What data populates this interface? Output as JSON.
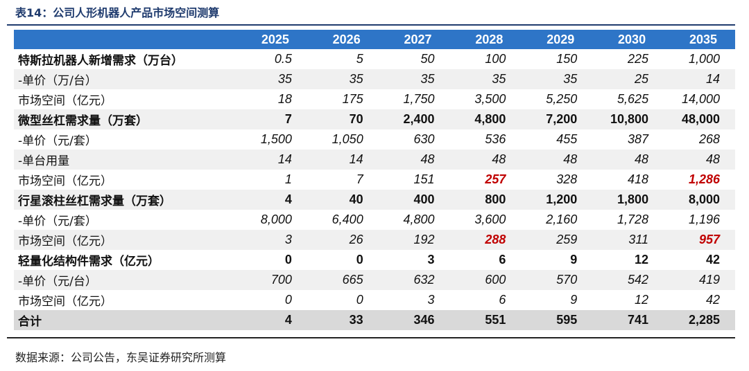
{
  "title": "表14：公司人形机器人产品市场空间测算",
  "source": "数据来源：公司公告，东吴证券研究所测算",
  "columns": [
    "2025",
    "2026",
    "2027",
    "2028",
    "2029",
    "2030",
    "2035"
  ],
  "highlight_color": "#c00000",
  "header_color": "#2e75c7",
  "rows": [
    {
      "label": "特斯拉机器人新增需求（万台）",
      "values": [
        "0.5",
        "5",
        "50",
        "100",
        "150",
        "225",
        "1,000"
      ]
    },
    {
      "label": "-单价（万/台）",
      "values": [
        "35",
        "35",
        "35",
        "35",
        "35",
        "25",
        "14"
      ]
    },
    {
      "label": "市场空间（亿元）",
      "values": [
        "18",
        "175",
        "1,750",
        "3,500",
        "5,250",
        "5,625",
        "14,000"
      ]
    },
    {
      "label": "微型丝杠需求量（万套）",
      "values": [
        "7",
        "70",
        "2,400",
        "4,800",
        "7,200",
        "10,800",
        "48,000"
      ]
    },
    {
      "label": "-单价（元/套）",
      "values": [
        "1,500",
        "1,050",
        "630",
        "536",
        "455",
        "387",
        "268"
      ]
    },
    {
      "label": "-单台用量",
      "values": [
        "14",
        "14",
        "48",
        "48",
        "48",
        "48",
        "48"
      ]
    },
    {
      "label": "市场空间（亿元）",
      "values": [
        "1",
        "7",
        "151",
        "257",
        "328",
        "418",
        "1,286"
      ]
    },
    {
      "label": "行星滚柱丝杠需求量（万套）",
      "values": [
        "4",
        "40",
        "400",
        "800",
        "1,200",
        "1,800",
        "8,000"
      ]
    },
    {
      "label": "-单价（元/套）",
      "values": [
        "8,000",
        "6,400",
        "4,800",
        "3,600",
        "2,160",
        "1,728",
        "1,196"
      ]
    },
    {
      "label": "市场空间（亿元）",
      "values": [
        "3",
        "26",
        "192",
        "288",
        "259",
        "311",
        "957"
      ]
    },
    {
      "label": "轻量化结构件需求（亿元）",
      "values": [
        "0",
        "0",
        "3",
        "6",
        "9",
        "12",
        "42"
      ]
    },
    {
      "label": "-单价（元/台）",
      "values": [
        "700",
        "665",
        "632",
        "600",
        "570",
        "542",
        "419"
      ]
    },
    {
      "label": "市场空间（亿元）",
      "values": [
        "0",
        "0",
        "3",
        "6",
        "9",
        "12",
        "42"
      ]
    },
    {
      "label": "合计",
      "values": [
        "4",
        "33",
        "346",
        "551",
        "595",
        "741",
        "2,285"
      ]
    }
  ]
}
